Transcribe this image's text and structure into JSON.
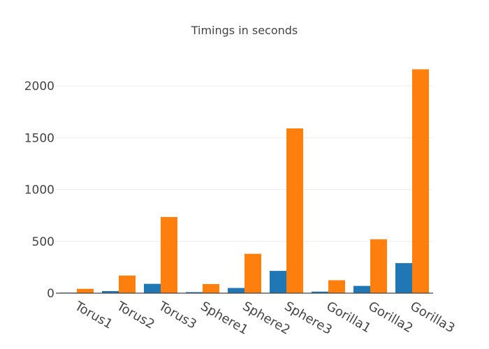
{
  "chart_data": {
    "type": "bar",
    "title": "Timings in seconds",
    "categories": [
      "Torus1",
      "Torus2",
      "Torus3",
      "Sphere1",
      "Sphere2",
      "Sphere3",
      "Gorilla1",
      "Gorilla2",
      "Gorilla3"
    ],
    "series": [
      {
        "values": [
          5,
          20,
          90,
          10,
          50,
          215,
          15,
          70,
          290
        ],
        "color": "#1f77b4"
      },
      {
        "values": [
          42,
          170,
          735,
          88,
          380,
          1590,
          125,
          520,
          2160
        ],
        "color": "#ff7f0e"
      }
    ],
    "yticks": [
      0,
      500,
      1000,
      1500,
      2000
    ],
    "ylim": [
      0,
      2290
    ],
    "xlabel": "",
    "ylabel": "",
    "grid": true,
    "legend": "none"
  }
}
